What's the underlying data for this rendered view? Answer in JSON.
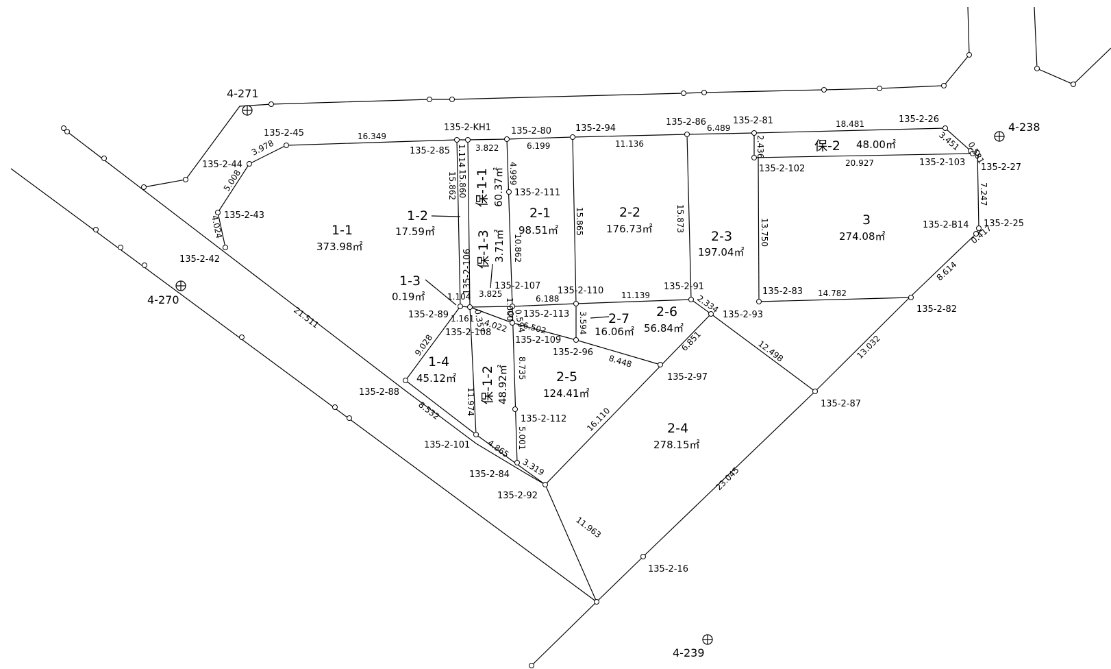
{
  "benchmarks": {
    "bm_4_271": "4-271",
    "bm_4_270": "4-270",
    "bm_4_238": "4-238",
    "bm_4_239": "4-239"
  },
  "lots": {
    "lot_1_1": {
      "name": "1-1",
      "area": "373.98㎡"
    },
    "lot_1_2": {
      "name": "1-2",
      "area": "17.59㎡"
    },
    "lot_1_3": {
      "name": "1-3",
      "area": "0.19㎡"
    },
    "lot_1_4": {
      "name": "1-4",
      "area": "45.12㎡"
    },
    "lot_ho_1_1": {
      "name": "保-1-1",
      "area": "60.37㎡"
    },
    "lot_ho_1_2": {
      "name": "保-1-2",
      "area": "48.92㎡"
    },
    "lot_ho_1_3": {
      "name": "保-1-3",
      "area": "3.71㎡"
    },
    "lot_2_1": {
      "name": "2-1",
      "area": "98.51㎡"
    },
    "lot_2_2": {
      "name": "2-2",
      "area": "176.73㎡"
    },
    "lot_2_3": {
      "name": "2-3",
      "area": "197.04㎡"
    },
    "lot_2_4": {
      "name": "2-4",
      "area": "278.15㎡"
    },
    "lot_2_5": {
      "name": "2-5",
      "area": "124.41㎡"
    },
    "lot_2_6": {
      "name": "2-6",
      "area": "56.84㎡"
    },
    "lot_2_7": {
      "name": "2-7",
      "area": "16.06㎡"
    },
    "lot_3": {
      "name": "3",
      "area": "274.08㎡"
    },
    "lot_ho_2": {
      "name": "保-2",
      "area": "48.00㎡"
    }
  },
  "points": {
    "p45": "135-2-45",
    "p44": "135-2-44",
    "p43": "135-2-43",
    "p42": "135-2-42",
    "pKH1": "135-2-KH1",
    "p85": "135-2-85",
    "p80": "135-2-80",
    "p94": "135-2-94",
    "p86": "135-2-86",
    "p81": "135-2-81",
    "p26": "135-2-26",
    "p27": "135-2-27",
    "p102": "135-2-102",
    "p103": "135-2-103",
    "p111": "135-2-111",
    "p106": "135-2-106",
    "pB14": "135-2-B14",
    "p25": "135-2-25",
    "p107": "135-2-107",
    "p110": "135-2-110",
    "p91": "135-2-91",
    "p83": "135-2-83",
    "p82": "135-2-82",
    "p89": "135-2-89",
    "p113": "135-2-113",
    "p93": "135-2-93",
    "p108": "135-2-108",
    "p109": "135-2-109",
    "p96": "135-2-96",
    "p97": "135-2-97",
    "p88": "135-2-88",
    "p87": "135-2-87",
    "p112": "135-2-112",
    "p101": "135-2-101",
    "p84": "135-2-84",
    "p92": "135-2-92",
    "p16": "135-2-16"
  },
  "dims": {
    "d16349": "16.349",
    "d3978": "3.978",
    "d5008": "5.008",
    "d4024": "4.024",
    "d21511": "21.511",
    "d1114": "1.114",
    "d3822": "3.822",
    "d6199": "6.199",
    "d11136": "11.136",
    "d6489": "6.489",
    "d18481": "18.481",
    "d3451": "3.451",
    "d0581": "0.581",
    "d2436": "2.436",
    "d20927": "20.927",
    "d7247": "7.247",
    "d0417": "0.417",
    "d15862": "15.862",
    "d15860": "15.860",
    "d4999": "4.999",
    "d10862": "10.862",
    "d15865": "15.865",
    "d15873": "15.873",
    "d13750": "13.750",
    "d1104": "1.104",
    "d3825": "3.825",
    "d6188": "6.188",
    "d11139": "11.139",
    "d2334": "2.334",
    "d14782": "14.782",
    "d8614": "8.614",
    "d1161": "1.161",
    "d0357": "0.357",
    "d4022": "4.022",
    "d0594": "0.594",
    "d6502": "6.502",
    "d3594": "3.594",
    "d9028": "9.028",
    "d8448": "8.448",
    "d6851": "6.851",
    "d12498": "12.498",
    "d13032": "13.032",
    "d8735": "8.735",
    "d11974": "11.974",
    "d8532": "8.532",
    "d16110": "16.110",
    "d4865": "4.865",
    "d5001": "5.001",
    "d3319": "3.319",
    "d23045": "23.045",
    "d11963": "11.963",
    "d1000": "1.000"
  }
}
